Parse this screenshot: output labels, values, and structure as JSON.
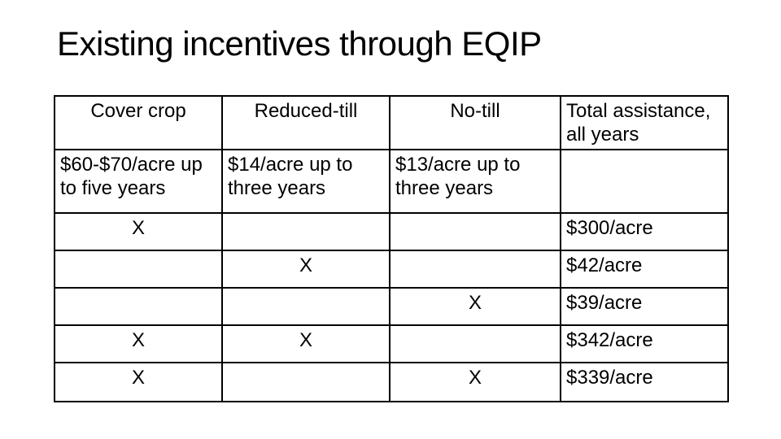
{
  "slide": {
    "title": "Existing incentives through EQIP",
    "background_color": "#ffffff",
    "text_color": "#000000",
    "table_border_color": "#000000"
  },
  "table": {
    "header": [
      "Cover crop",
      "Reduced-till",
      "No-till",
      "Total assistance, all years"
    ],
    "body": [
      [
        "$60-$70/acre up to five years",
        "$14/acre up to three years",
        "$13/acre up to three years",
        ""
      ],
      [
        "X",
        "",
        "",
        "$300/acre"
      ],
      [
        "",
        "X",
        "",
        "$42/acre"
      ],
      [
        "",
        "",
        "X",
        "$39/acre"
      ],
      [
        "X",
        "X",
        "",
        "$342/acre"
      ],
      [
        "X",
        "",
        "X",
        "$339/acre"
      ]
    ]
  }
}
